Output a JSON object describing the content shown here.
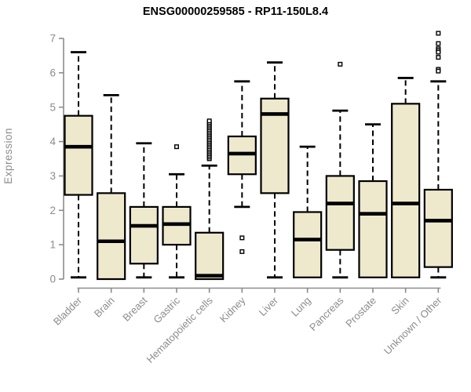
{
  "title": "ENSG00000259585 - RP11-150L8.4",
  "colors": {
    "box_fill": "#EEE8CD",
    "box_stroke": "#000000",
    "median": "#000000",
    "whisker": "#000000",
    "axis": "#8c8c8c",
    "tick_label": "#8c8c8c",
    "title": "#000000",
    "background": "#ffffff",
    "outlier_fill": "#ffffff"
  },
  "chart_data": {
    "type": "boxplot",
    "title": "ENSG00000259585 - RP11-150L8.4",
    "xlabel": "",
    "ylabel": "Expression",
    "ylim": [
      0,
      7.3
    ],
    "yticks": [
      0,
      1,
      2,
      3,
      4,
      5,
      6,
      7
    ],
    "grid": false,
    "legend": "none",
    "categories": [
      "Bladder",
      "Brain",
      "Breast",
      "Gastric",
      "Hematopoietic cells",
      "Kidney",
      "Liver",
      "Lung",
      "Pancreas",
      "Prostate",
      "Skin",
      "Unknown / Other"
    ],
    "series": [
      {
        "name": "Bladder",
        "low": 0.05,
        "q1": 2.45,
        "median": 3.85,
        "q3": 4.75,
        "high": 6.6,
        "outliers": []
      },
      {
        "name": "Brain",
        "low": 0.0,
        "q1": 0.0,
        "median": 1.1,
        "q3": 2.5,
        "high": 5.35,
        "outliers": []
      },
      {
        "name": "Breast",
        "low": 0.05,
        "q1": 0.45,
        "median": 1.55,
        "q3": 2.1,
        "high": 3.95,
        "outliers": []
      },
      {
        "name": "Gastric",
        "low": 0.05,
        "q1": 1.0,
        "median": 1.6,
        "q3": 2.1,
        "high": 3.05,
        "outliers": [
          3.85
        ]
      },
      {
        "name": "Hematopoietic cells",
        "low": 0.0,
        "q1": 0.0,
        "median": 0.1,
        "q3": 1.35,
        "high": 3.3,
        "outliers": [
          3.5,
          3.55,
          3.6,
          3.65,
          3.7,
          3.75,
          3.8,
          3.85,
          3.9,
          3.95,
          4.0,
          4.05,
          4.1,
          4.15,
          4.2,
          4.25,
          4.3,
          4.35,
          4.4,
          4.45,
          4.5,
          4.55,
          4.6
        ]
      },
      {
        "name": "Kidney",
        "low": 2.1,
        "q1": 3.05,
        "median": 3.65,
        "q3": 4.15,
        "high": 5.75,
        "outliers": [
          1.2,
          0.8
        ]
      },
      {
        "name": "Liver",
        "low": 0.05,
        "q1": 2.5,
        "median": 4.8,
        "q3": 5.25,
        "high": 6.3,
        "outliers": []
      },
      {
        "name": "Lung",
        "low": 0.05,
        "q1": 0.05,
        "median": 1.15,
        "q3": 1.95,
        "high": 3.85,
        "outliers": []
      },
      {
        "name": "Pancreas",
        "low": 0.05,
        "q1": 0.85,
        "median": 2.2,
        "q3": 3.0,
        "high": 4.9,
        "outliers": [
          6.25
        ]
      },
      {
        "name": "Prostate",
        "low": 0.05,
        "q1": 0.05,
        "median": 1.9,
        "q3": 2.85,
        "high": 4.5,
        "outliers": []
      },
      {
        "name": "Skin",
        "low": 0.05,
        "q1": 0.05,
        "median": 2.2,
        "q3": 5.1,
        "high": 5.85,
        "outliers": []
      },
      {
        "name": "Unknown / Other",
        "low": 0.05,
        "q1": 0.35,
        "median": 1.7,
        "q3": 2.6,
        "high": 5.75,
        "outliers": [
          7.15,
          6.85,
          6.7,
          6.65,
          6.6,
          6.45,
          6.1,
          6.05
        ]
      }
    ]
  }
}
